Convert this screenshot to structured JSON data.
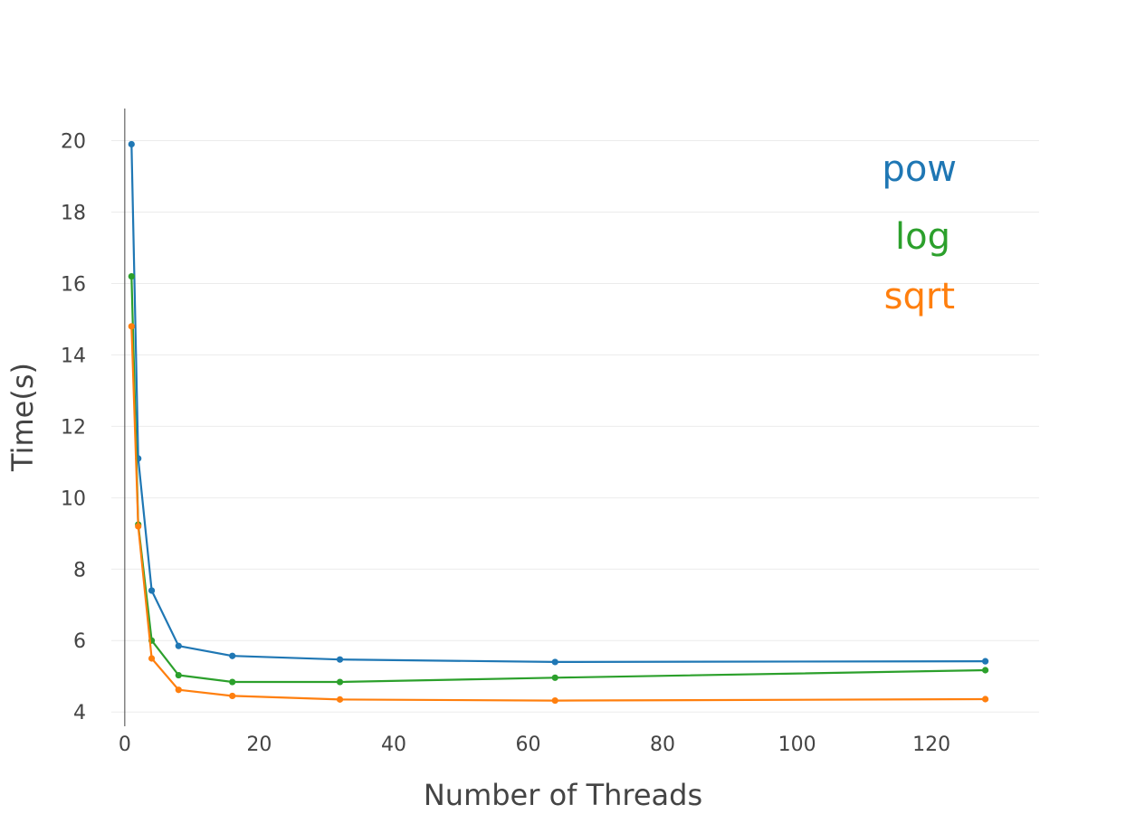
{
  "chart_data": {
    "type": "line",
    "title": "",
    "xlabel": "Number of Threads",
    "ylabel": "Time(s)",
    "xlim": [
      -2,
      136
    ],
    "ylim": [
      3.6,
      20.9
    ],
    "xticks": [
      0,
      20,
      40,
      60,
      80,
      100,
      120
    ],
    "yticks": [
      4,
      6,
      8,
      10,
      12,
      14,
      16,
      18,
      20
    ],
    "grid": true,
    "legend_position": "top-right",
    "x": [
      1,
      2,
      4,
      8,
      16,
      32,
      64,
      128
    ],
    "series": [
      {
        "name": "pow",
        "color": "#1f77b4",
        "values": [
          19.9,
          11.1,
          7.4,
          5.85,
          5.57,
          5.47,
          5.4,
          5.42
        ]
      },
      {
        "name": "log",
        "color": "#2ca02c",
        "values": [
          16.2,
          9.25,
          6.0,
          5.03,
          4.84,
          4.84,
          4.96,
          5.17
        ]
      },
      {
        "name": "sqrt",
        "color": "#ff7f0e",
        "values": [
          14.8,
          9.2,
          5.5,
          4.62,
          4.45,
          4.35,
          4.32,
          4.36
        ]
      }
    ]
  }
}
